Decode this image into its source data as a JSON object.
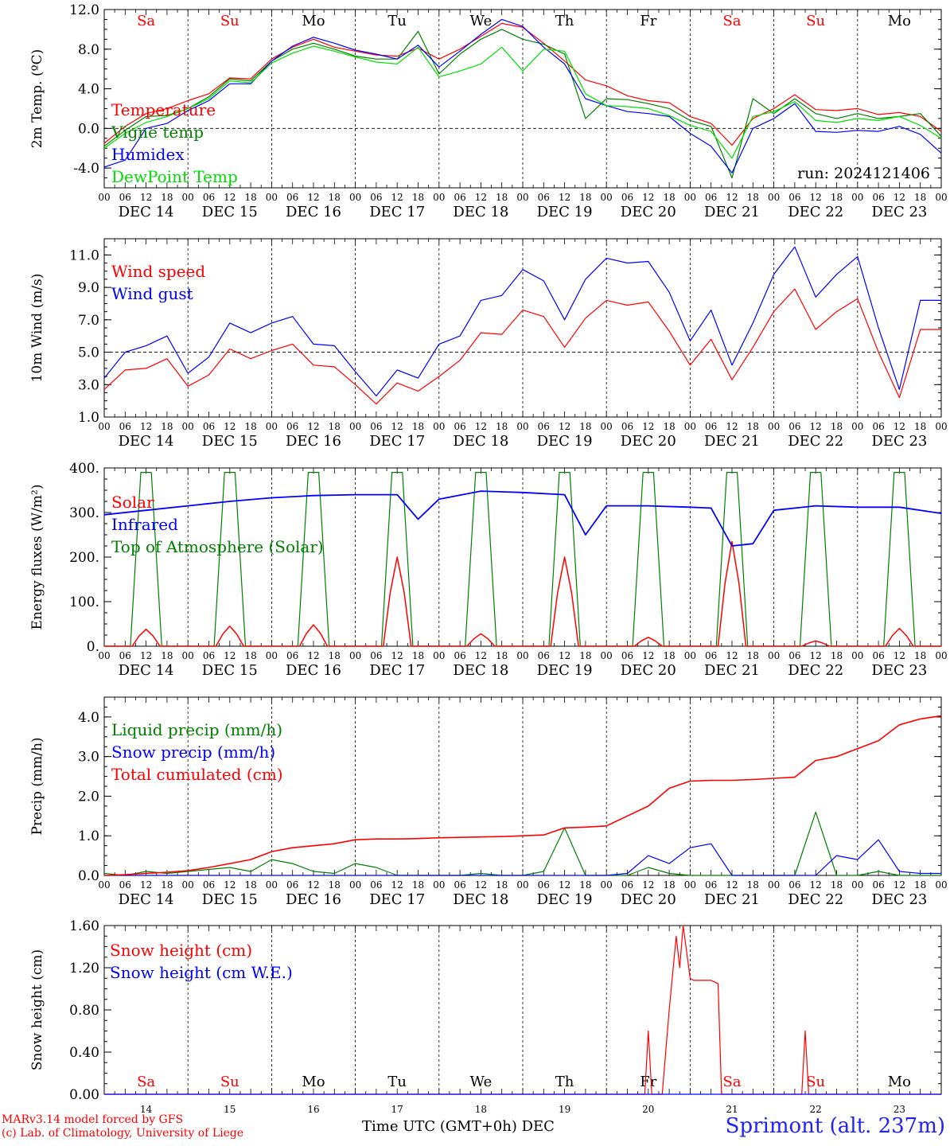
{
  "footer": {
    "model_line": "MARv3.14 model forced by GFS",
    "credit_line": "(c) Lab. of Climatology, University of Liege",
    "xaxis_title": "Time UTC (GMT+0h)",
    "month": "DEC",
    "station": "Sprimont (alt. 237m)"
  },
  "colors": {
    "red": "#ff0000",
    "green": "#008000",
    "blue": "#0000ff",
    "lightgreen": "#00e000",
    "weekend": "#ff0000",
    "weekday": "#000000"
  },
  "time_axis": {
    "day_names": [
      "Sa",
      "Su",
      "Mo",
      "Tu",
      "We",
      "Th",
      "Fr",
      "Sa",
      "Su",
      "Mo"
    ],
    "weekend": [
      true,
      true,
      false,
      false,
      false,
      false,
      false,
      true,
      true,
      false
    ],
    "date_labels": [
      "DEC 14",
      "DEC 15",
      "DEC 16",
      "DEC 17",
      "DEC 18",
      "DEC 19",
      "DEC 20",
      "DEC 21",
      "DEC 22",
      "DEC 23"
    ],
    "day_numbers": [
      "14",
      "15",
      "16",
      "17",
      "18",
      "19",
      "20",
      "21",
      "22",
      "23"
    ],
    "hour_ticks": [
      "00",
      "06",
      "12",
      "18"
    ],
    "final_tick": "00"
  },
  "chart_data": [
    {
      "type": "line",
      "ylabel": "2m Temp. (ºC)",
      "ylim": [
        -6,
        12
      ],
      "yticks": [
        "12.0",
        "8.0",
        "4.0",
        "0.0",
        "-4.0"
      ],
      "yticks_values": [
        12,
        8,
        4,
        0,
        -4
      ],
      "ref_line": 0,
      "annotation": "run: 2024121406",
      "x_hours": [
        0,
        6,
        12,
        18,
        24,
        30,
        36,
        42,
        48,
        54,
        60,
        66,
        72,
        78,
        84,
        90,
        96,
        102,
        108,
        114,
        120,
        126,
        132,
        138,
        144,
        150,
        156,
        162,
        168,
        174,
        180,
        186,
        192,
        198,
        204,
        210,
        216,
        222,
        228,
        234,
        240
      ],
      "series": [
        {
          "name": "Temperature",
          "color": "#ff0000",
          "values": [
            -1.5,
            0.2,
            1.5,
            2.0,
            2.8,
            3.5,
            5.1,
            5.0,
            7.0,
            8.2,
            9.0,
            8.2,
            7.8,
            7.4,
            7.3,
            8.1,
            7.0,
            8.0,
            9.3,
            10.6,
            10.2,
            8.6,
            6.8,
            4.9,
            4.3,
            3.3,
            2.8,
            2.6,
            1.2,
            0.5,
            -1.7,
            1.0,
            2.0,
            3.4,
            1.9,
            1.8,
            2.0,
            1.4,
            1.6,
            1.2,
            -0.3
          ]
        },
        {
          "name": "Vigne temp",
          "color": "#008000",
          "values": [
            -1.8,
            -0.2,
            1.2,
            1.3,
            2.0,
            3.2,
            5.0,
            4.8,
            6.8,
            8.0,
            8.6,
            8.0,
            7.3,
            7.0,
            7.0,
            9.8,
            5.5,
            7.5,
            9.0,
            10.0,
            9.0,
            8.5,
            7.5,
            1.0,
            3.0,
            2.9,
            2.5,
            2.0,
            0.8,
            0.2,
            -5.0,
            3.0,
            1.5,
            3.0,
            1.5,
            1.0,
            1.5,
            1.0,
            1.2,
            1.5,
            -0.8
          ]
        },
        {
          "name": "Humidex",
          "color": "#0000ff",
          "values": [
            -3.9,
            -3.2,
            0.0,
            0.5,
            1.8,
            2.8,
            4.5,
            4.5,
            6.8,
            8.3,
            9.2,
            8.6,
            7.9,
            7.5,
            7.0,
            8.4,
            6.2,
            7.8,
            9.5,
            11.0,
            10.3,
            8.2,
            6.5,
            3.0,
            2.3,
            1.7,
            1.5,
            1.2,
            -0.5,
            -1.8,
            -4.5,
            0.0,
            1.0,
            2.5,
            -0.3,
            -0.4,
            -0.2,
            -0.3,
            0.2,
            -0.6,
            -2.5
          ]
        },
        {
          "name": "DewPoint Temp",
          "color": "#00e000",
          "values": [
            -2.0,
            -0.5,
            0.6,
            1.2,
            2.0,
            3.0,
            4.8,
            4.6,
            6.6,
            7.6,
            8.3,
            7.8,
            7.2,
            6.7,
            6.5,
            8.2,
            5.2,
            5.8,
            6.5,
            8.2,
            5.8,
            8.0,
            7.8,
            3.5,
            2.3,
            2.2,
            2.0,
            1.3,
            0.3,
            -0.3,
            -3.0,
            1.2,
            1.7,
            2.7,
            0.8,
            0.6,
            1.0,
            0.8,
            1.2,
            0.3,
            -1.0
          ]
        }
      ]
    },
    {
      "type": "line",
      "ylabel": "10m Wind (m/s)",
      "ylim": [
        1,
        12
      ],
      "yticks": [
        "11.0",
        "9.0",
        "7.0",
        "5.0",
        "3.0",
        "1.0"
      ],
      "yticks_values": [
        11,
        9,
        7,
        5,
        3,
        1
      ],
      "ref_line": 5,
      "x_hours": [
        0,
        6,
        12,
        18,
        24,
        30,
        36,
        42,
        48,
        54,
        60,
        66,
        72,
        78,
        84,
        90,
        96,
        102,
        108,
        114,
        120,
        126,
        132,
        138,
        144,
        150,
        156,
        162,
        168,
        174,
        180,
        186,
        192,
        198,
        204,
        210,
        216,
        222,
        228,
        234,
        240
      ],
      "series": [
        {
          "name": "Wind speed",
          "color": "#ff0000",
          "values": [
            2.7,
            3.9,
            4.0,
            4.6,
            2.9,
            3.6,
            5.2,
            4.6,
            5.1,
            5.5,
            4.2,
            4.1,
            3.0,
            1.8,
            3.1,
            2.6,
            3.5,
            4.5,
            6.2,
            6.1,
            7.6,
            7.2,
            5.3,
            7.1,
            8.2,
            7.9,
            8.1,
            6.3,
            4.2,
            5.8,
            3.3,
            5.3,
            7.5,
            8.9,
            6.4,
            7.5,
            8.3,
            5.0,
            2.2,
            6.4,
            6.4
          ]
        },
        {
          "name": "Wind gust",
          "color": "#0000ff",
          "values": [
            3.4,
            5.0,
            5.4,
            6.0,
            3.7,
            4.7,
            6.8,
            6.2,
            6.8,
            7.2,
            5.5,
            5.4,
            3.8,
            2.3,
            3.9,
            3.4,
            5.5,
            6.0,
            8.2,
            8.5,
            10.1,
            9.4,
            7.0,
            9.5,
            10.8,
            10.5,
            10.6,
            8.7,
            5.7,
            7.6,
            4.2,
            6.8,
            9.8,
            11.5,
            8.4,
            9.8,
            10.9,
            6.5,
            2.7,
            8.2,
            8.2
          ]
        }
      ]
    },
    {
      "type": "line",
      "ylabel": "Energy fluxes (W/m²)",
      "ylim": [
        0,
        400
      ],
      "yticks": [
        "400.",
        "300.",
        "200.",
        "100.",
        "0."
      ],
      "yticks_values": [
        400,
        300,
        200,
        100,
        0
      ],
      "solar_peaks": [
        38,
        45,
        48,
        200,
        28,
        200,
        20,
        235,
        12,
        40
      ],
      "toa_peak": 390,
      "infrared_x": [
        0,
        12,
        24,
        36,
        48,
        60,
        72,
        84,
        90,
        96,
        108,
        120,
        132,
        138,
        144,
        156,
        168,
        174,
        180,
        186,
        192,
        204,
        216,
        228,
        240
      ],
      "infrared_values": [
        295,
        305,
        315,
        325,
        333,
        338,
        340,
        340,
        285,
        330,
        348,
        345,
        340,
        250,
        315,
        315,
        312,
        310,
        225,
        230,
        305,
        315,
        312,
        312,
        298
      ],
      "series": [
        {
          "name": "Solar",
          "color": "#ff0000"
        },
        {
          "name": "Infrared",
          "color": "#0000ff"
        },
        {
          "name": "Top of Atmosphere (Solar)",
          "color": "#008000"
        }
      ]
    },
    {
      "type": "line",
      "ylabel": "Precip (mm/h)",
      "ylim": [
        0,
        4.5
      ],
      "yticks": [
        "4.0",
        "3.0",
        "2.0",
        "1.0",
        "0.0"
      ],
      "yticks_values": [
        4,
        3,
        2,
        1,
        0
      ],
      "x_hours": [
        0,
        6,
        12,
        18,
        24,
        30,
        36,
        42,
        48,
        54,
        60,
        66,
        72,
        78,
        84,
        90,
        96,
        102,
        108,
        114,
        120,
        126,
        132,
        138,
        144,
        150,
        156,
        162,
        168,
        174,
        180,
        186,
        192,
        198,
        204,
        210,
        216,
        222,
        228,
        234,
        240
      ],
      "series": [
        {
          "name": "Liquid precip (mm/h)",
          "color": "#008000",
          "values": [
            0.05,
            0.0,
            0.1,
            0.05,
            0.1,
            0.15,
            0.2,
            0.1,
            0.4,
            0.3,
            0.1,
            0.05,
            0.3,
            0.2,
            0.0,
            0.0,
            0.0,
            0.0,
            0.05,
            0.0,
            0.0,
            0.1,
            1.2,
            0.0,
            0.0,
            0.0,
            0.2,
            0.05,
            0.0,
            0.0,
            0.0,
            0.0,
            0.0,
            0.0,
            1.6,
            0.0,
            0.0,
            0.1,
            0.0,
            0.0,
            0.0
          ]
        },
        {
          "name": "Snow precip (mm/h)",
          "color": "#0000ff",
          "values": [
            0.0,
            0.0,
            0.0,
            0.0,
            0.0,
            0.0,
            0.0,
            0.0,
            0.0,
            0.0,
            0.0,
            0.0,
            0.0,
            0.0,
            0.0,
            0.0,
            0.0,
            0.0,
            0.0,
            0.0,
            0.0,
            0.0,
            0.0,
            0.0,
            0.0,
            0.05,
            0.5,
            0.3,
            0.7,
            0.8,
            0.0,
            0.0,
            0.0,
            0.0,
            0.0,
            0.5,
            0.4,
            0.9,
            0.1,
            0.05,
            0.05
          ]
        },
        {
          "name": "Total cumulated (cm)",
          "color": "#ff0000",
          "values": [
            0.0,
            0.02,
            0.05,
            0.08,
            0.12,
            0.2,
            0.3,
            0.4,
            0.6,
            0.7,
            0.75,
            0.8,
            0.9,
            0.92,
            0.92,
            0.93,
            0.95,
            0.96,
            0.97,
            0.98,
            1.0,
            1.02,
            1.2,
            1.22,
            1.25,
            1.5,
            1.75,
            2.2,
            2.38,
            2.4,
            2.4,
            2.42,
            2.45,
            2.48,
            2.9,
            3.0,
            3.2,
            3.4,
            3.8,
            3.95,
            4.03
          ]
        }
      ]
    },
    {
      "type": "line",
      "ylabel": "Snow height (cm)",
      "ylim": [
        0,
        1.6
      ],
      "yticks": [
        "1.60",
        "1.20",
        "0.80",
        "0.40",
        "0.00"
      ],
      "yticks_values": [
        1.6,
        1.2,
        0.8,
        0.4,
        0
      ],
      "x_hours": [
        0,
        155,
        156,
        157,
        158,
        160,
        162,
        164,
        165,
        166,
        168,
        169,
        170,
        171,
        172,
        174,
        176,
        177,
        178,
        179,
        180,
        181,
        182,
        183,
        184,
        200,
        201,
        202,
        203,
        240
      ],
      "series": [
        {
          "name": "Snow height (cm)",
          "color": "#ff0000",
          "values": [
            0,
            0,
            0.6,
            0,
            0,
            0,
            0.8,
            1.5,
            1.2,
            1.6,
            1.1,
            1.08,
            1.08,
            1.08,
            1.08,
            1.08,
            1.05,
            0,
            0,
            0,
            0,
            0,
            0,
            0,
            0,
            0,
            0.6,
            0,
            0,
            0
          ]
        },
        {
          "name": "Snow height (cm W.E.)",
          "color": "#0000ff",
          "values": [
            0,
            0,
            0,
            0,
            0,
            0,
            0,
            0,
            0,
            0,
            0,
            0,
            0,
            0,
            0,
            0,
            0,
            0,
            0,
            0,
            0,
            0,
            0,
            0,
            0,
            0,
            0,
            0,
            0,
            0
          ]
        }
      ]
    }
  ]
}
